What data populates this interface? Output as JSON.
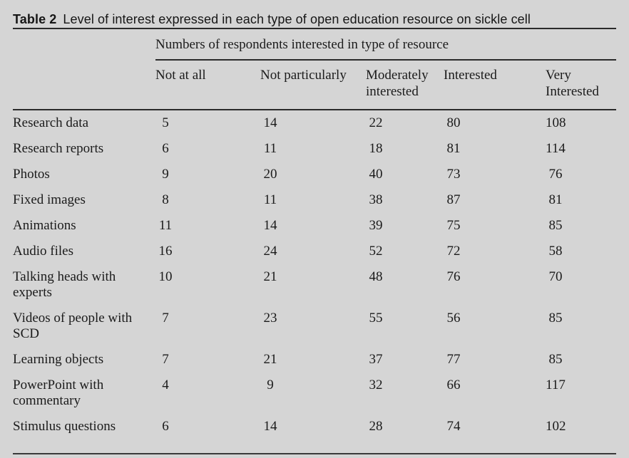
{
  "caption": {
    "label": "Table 2",
    "text": "Level of interest expressed in each type of open education resource on sickle cell"
  },
  "table": {
    "span_header": "Numbers of respondents interested in type of resource",
    "columns": [
      "Not at all",
      "Not particularly",
      "Moderately interested",
      "Interested",
      "Very Interested"
    ],
    "rows": [
      {
        "label": "Research data",
        "values": [
          "5",
          "14",
          "22",
          "80",
          "108"
        ]
      },
      {
        "label": "Research reports",
        "values": [
          "6",
          "11",
          "18",
          "81",
          "114"
        ]
      },
      {
        "label": "Photos",
        "values": [
          "9",
          "20",
          "40",
          "73",
          "76"
        ]
      },
      {
        "label": "Fixed images",
        "values": [
          "8",
          "11",
          "38",
          "87",
          "81"
        ]
      },
      {
        "label": "Animations",
        "values": [
          "11",
          "14",
          "39",
          "75",
          "85"
        ]
      },
      {
        "label": "Audio files",
        "values": [
          "16",
          "24",
          "52",
          "72",
          "58"
        ]
      },
      {
        "label": "Talking heads with experts",
        "values": [
          "10",
          "21",
          "48",
          "76",
          "70"
        ]
      },
      {
        "label": "Videos of people with SCD",
        "values": [
          "7",
          "23",
          "55",
          "56",
          "85"
        ]
      },
      {
        "label": "Learning objects",
        "values": [
          "7",
          "21",
          "37",
          "77",
          "85"
        ]
      },
      {
        "label": "PowerPoint with commentary",
        "values": [
          "4",
          "9",
          "32",
          "66",
          "117"
        ]
      },
      {
        "label": "Stimulus questions",
        "values": [
          "6",
          "14",
          "28",
          "74",
          "102"
        ]
      }
    ]
  },
  "colors": {
    "background": "#d5d5d5",
    "text": "#1b1b1b",
    "rule": "#2a2a2a"
  }
}
